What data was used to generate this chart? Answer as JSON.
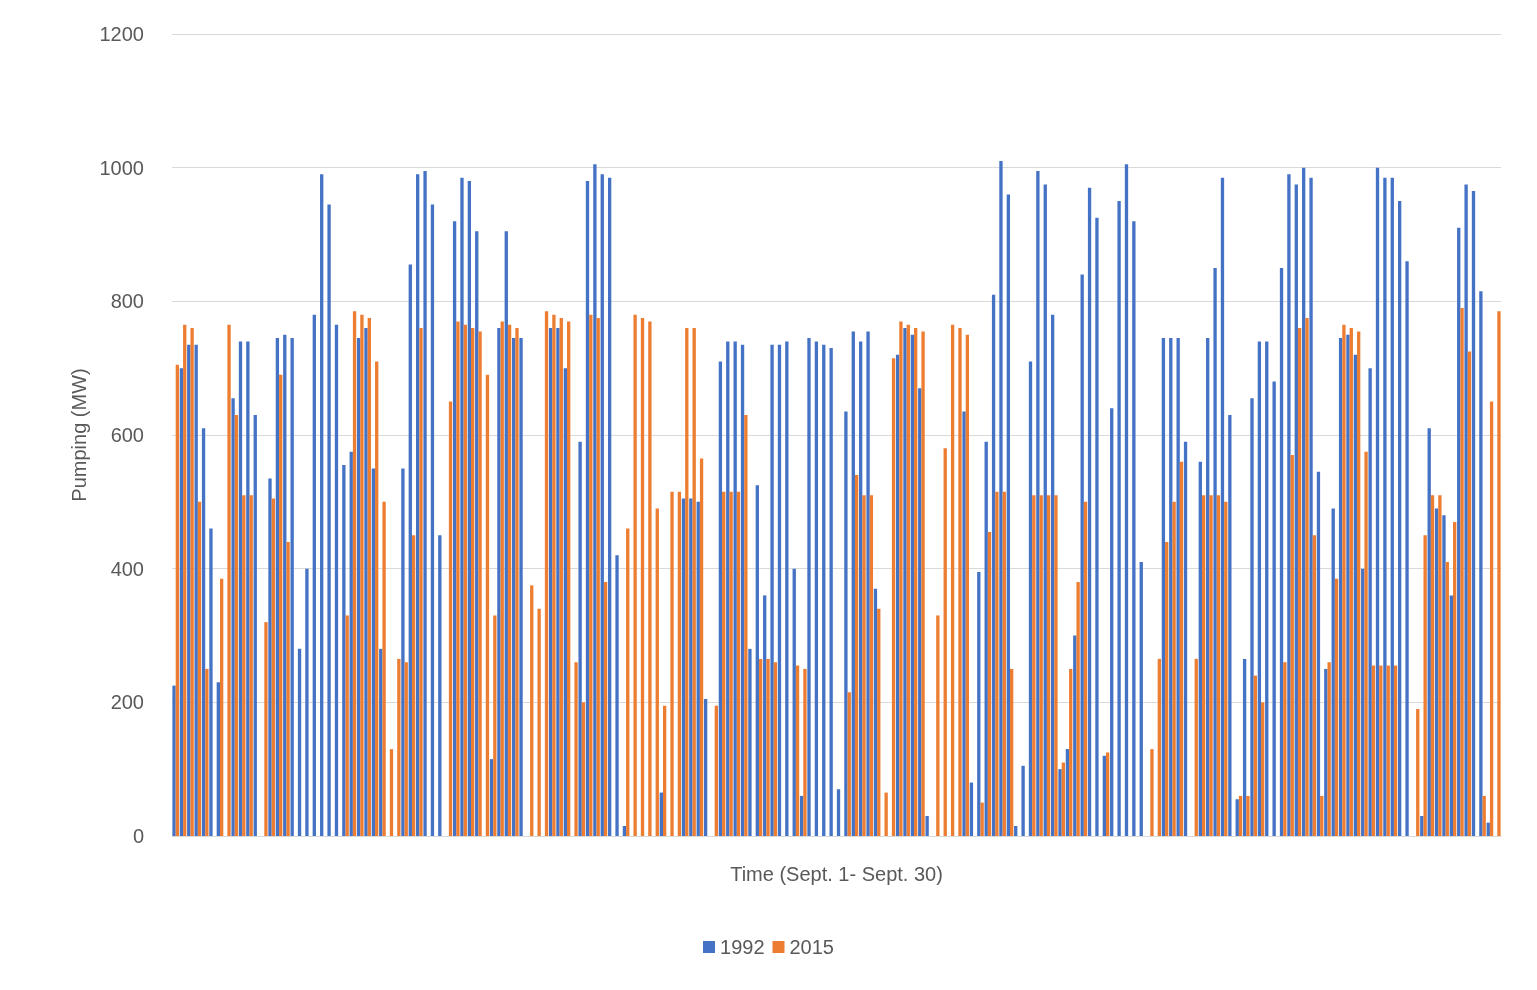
{
  "chart_data": {
    "type": "bar",
    "xlabel": "Time (Sept. 1- Sept. 30)",
    "ylabel": "Pumping (MW)",
    "categories": [
      null,
      null,
      null,
      null,
      null,
      null,
      null,
      null,
      null,
      null,
      null,
      null,
      null,
      null,
      null,
      null,
      null,
      null,
      null,
      null,
      null,
      null,
      null,
      null,
      null,
      null,
      null,
      null,
      null,
      null,
      null,
      null,
      null,
      null,
      null,
      null,
      null,
      null,
      null,
      null,
      null,
      null,
      null,
      null,
      null,
      null,
      null,
      null,
      null,
      null,
      null,
      null,
      null,
      null,
      null,
      null,
      null,
      null,
      null,
      null,
      null,
      null,
      null,
      null,
      null,
      null,
      null,
      null,
      null,
      null,
      null,
      null,
      null,
      null,
      null,
      null,
      null,
      null,
      null,
      null,
      null,
      null,
      null,
      null,
      null,
      null,
      null,
      null,
      null,
      null,
      null,
      null,
      null,
      null,
      null,
      null,
      null,
      null,
      null,
      null,
      null,
      null,
      null,
      null,
      null,
      null,
      null,
      null,
      null,
      null,
      null,
      null,
      null,
      null,
      null,
      null,
      null,
      null,
      null,
      null,
      null,
      null,
      null,
      null,
      null,
      null,
      null,
      null,
      null,
      null,
      null,
      null,
      null,
      null,
      null,
      null,
      null,
      null,
      null,
      null,
      null,
      null,
      null,
      null,
      null,
      null,
      null,
      null,
      null,
      null,
      null,
      null,
      null,
      null,
      null,
      null,
      null,
      null,
      null,
      null,
      null,
      null,
      null,
      null,
      null,
      null,
      null,
      null,
      null,
      null,
      null,
      null,
      null,
      null,
      null,
      null,
      null,
      null,
      null,
      null
    ],
    "series": [
      {
        "name": "1992",
        "color": "#4472c4",
        "values": [
          225,
          700,
          735,
          735,
          610,
          460,
          230,
          0,
          655,
          740,
          740,
          630,
          0,
          535,
          745,
          750,
          745,
          280,
          400,
          780,
          990,
          945,
          765,
          555,
          575,
          745,
          760,
          550,
          280,
          0,
          0,
          550,
          855,
          990,
          995,
          945,
          450,
          0,
          920,
          985,
          980,
          905,
          0,
          115,
          760,
          905,
          745,
          745,
          0,
          0,
          0,
          760,
          760,
          700,
          0,
          590,
          980,
          1005,
          990,
          985,
          420,
          15,
          0,
          0,
          0,
          0,
          65,
          0,
          0,
          505,
          505,
          500,
          205,
          0,
          710,
          740,
          740,
          735,
          280,
          525,
          360,
          735,
          735,
          740,
          400,
          60,
          745,
          740,
          735,
          730,
          70,
          635,
          755,
          740,
          755,
          370,
          0,
          0,
          720,
          760,
          750,
          670,
          30,
          0,
          0,
          0,
          0,
          635,
          80,
          395,
          590,
          810,
          1010,
          960,
          15,
          105,
          710,
          995,
          975,
          780,
          100,
          130,
          300,
          840,
          970,
          925,
          120,
          640,
          950,
          1005,
          920,
          410,
          0,
          0,
          745,
          745,
          745,
          590,
          0,
          560,
          745,
          850,
          985,
          630,
          55,
          265,
          655,
          740,
          740,
          680,
          850,
          990,
          975,
          1000,
          985,
          545,
          250,
          490,
          745,
          750,
          720,
          400,
          700,
          1000,
          985,
          985,
          950,
          860,
          0,
          30,
          610,
          490,
          480,
          360,
          910,
          975,
          965,
          815,
          20,
          0
        ]
      },
      {
        "name": "2015",
        "color": "#ed7d31",
        "values": [
          705,
          765,
          760,
          500,
          250,
          0,
          385,
          765,
          630,
          510,
          510,
          0,
          320,
          505,
          690,
          440,
          0,
          0,
          0,
          0,
          0,
          0,
          0,
          330,
          785,
          780,
          775,
          710,
          500,
          130,
          265,
          260,
          450,
          760,
          0,
          0,
          0,
          650,
          770,
          765,
          760,
          755,
          690,
          330,
          770,
          765,
          760,
          0,
          375,
          340,
          785,
          780,
          775,
          770,
          260,
          200,
          780,
          775,
          380,
          0,
          0,
          460,
          780,
          775,
          770,
          490,
          195,
          515,
          515,
          760,
          760,
          565,
          0,
          195,
          515,
          515,
          515,
          630,
          0,
          265,
          265,
          260,
          0,
          0,
          255,
          250,
          0,
          0,
          0,
          0,
          0,
          215,
          540,
          510,
          510,
          340,
          65,
          715,
          770,
          765,
          760,
          755,
          0,
          330,
          580,
          765,
          760,
          750,
          0,
          50,
          455,
          515,
          515,
          250,
          0,
          0,
          510,
          510,
          510,
          510,
          110,
          250,
          380,
          500,
          0,
          0,
          125,
          0,
          0,
          0,
          0,
          0,
          130,
          265,
          440,
          500,
          560,
          0,
          265,
          510,
          510,
          510,
          500,
          0,
          60,
          60,
          240,
          200,
          0,
          0,
          260,
          570,
          760,
          775,
          450,
          60,
          260,
          385,
          765,
          760,
          755,
          575,
          255,
          255,
          255,
          255,
          0,
          0,
          190,
          450,
          510,
          510,
          410,
          470,
          790,
          725,
          0,
          60,
          650,
          785
        ]
      }
    ],
    "ylim": [
      0,
      1200
    ],
    "yticks": [
      0,
      200,
      400,
      600,
      800,
      1000,
      1200
    ],
    "grid": "y",
    "legend": "bottom",
    "tick_labels": "y"
  }
}
